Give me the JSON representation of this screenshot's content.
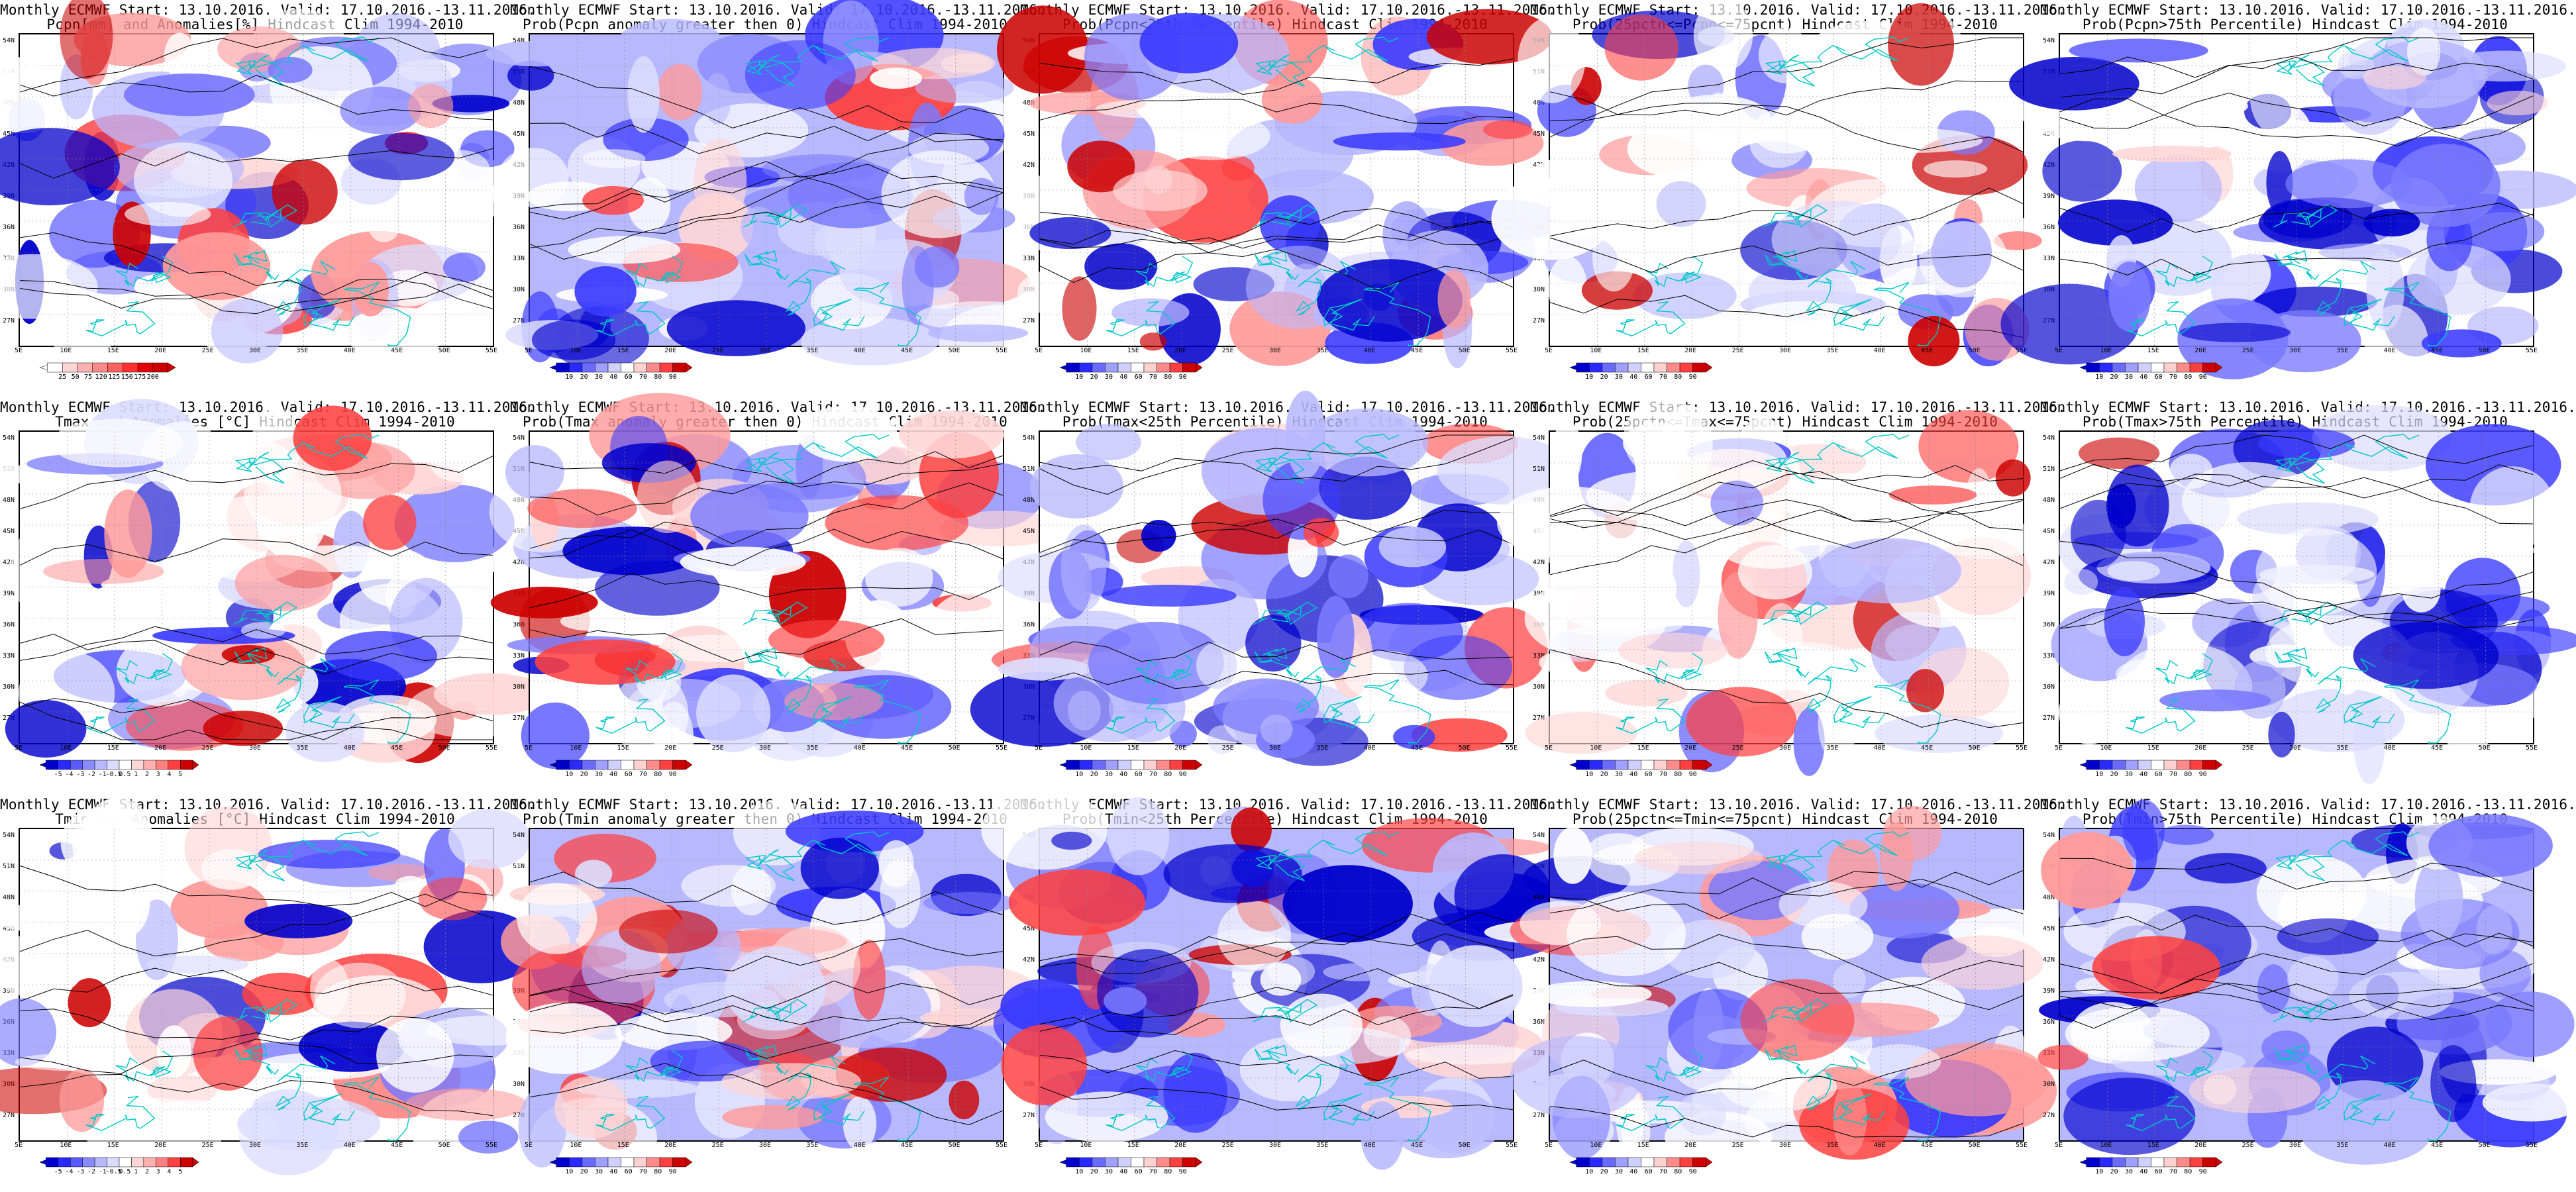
{
  "figure": {
    "panels": [
      {
        "title1": "Monthly ECMWF Start: 13.10.2016. Valid: 17.10.2016.-13.11.2016.",
        "title2": "Pcpn[mm] and Anomalies[%] Hindcast Clim 1994-2010",
        "cbar": "anom_pcpn",
        "ticks": [
          "25",
          "50",
          "75",
          "120",
          "125",
          "150",
          "175",
          "200"
        ]
      },
      {
        "title1": "Monthly ECMWF Start: 13.10.2016. Valid: 17.10.2016.-13.11.2016.",
        "title2": "Prob(Pcpn anomaly greater then 0) Hindcast Clim 1994-2010",
        "cbar": "prob",
        "ticks": [
          "10",
          "20",
          "30",
          "40",
          "60",
          "70",
          "80",
          "90"
        ]
      },
      {
        "title1": "Monthly ECMWF Start: 13.10.2016. Valid: 17.10.2016.-13.11.2016.",
        "title2": "Prob(Pcpn<25th Percentile) Hindcast Clim 1994-2010",
        "cbar": "prob",
        "ticks": [
          "10",
          "20",
          "30",
          "40",
          "60",
          "70",
          "80",
          "90"
        ]
      },
      {
        "title1": "Monthly ECMWF Start: 13.10.2016. Valid: 17.10.2016.-13.11.2016.",
        "title2": "Prob(25pctn<=Pcpn<=75pcnt) Hindcast Clim 1994-2010",
        "cbar": "prob",
        "ticks": [
          "10",
          "20",
          "30",
          "40",
          "60",
          "70",
          "80",
          "90"
        ]
      },
      {
        "title1": "Monthly ECMWF Start: 13.10.2016. Valid: 17.10.2016.-13.11.2016.",
        "title2": "Prob(Pcpn>75th Percentile) Hindcast Clim 1994-2010",
        "cbar": "prob",
        "ticks": [
          "10",
          "20",
          "30",
          "40",
          "60",
          "70",
          "80",
          "90"
        ]
      },
      {
        "title1": "Monthly ECMWF Start: 13.10.2016. Valid: 17.10.2016.-13.11.2016.",
        "title2": "Tmax and Anomalies [°C] Hindcast Clim 1994-2010",
        "cbar": "anom_temp",
        "ticks": [
          "-5",
          "-4",
          "-3",
          "-2",
          "-1",
          "-0.5",
          "0.5",
          "1",
          "2",
          "3",
          "4",
          "5"
        ]
      },
      {
        "title1": "Monthly ECMWF Start: 13.10.2016. Valid: 17.10.2016.-13.11.2016.",
        "title2": "Prob(Tmax anomaly greater then 0) Hindcast Clim 1994-2010",
        "cbar": "prob",
        "ticks": [
          "10",
          "20",
          "30",
          "40",
          "60",
          "70",
          "80",
          "90"
        ]
      },
      {
        "title1": "Monthly ECMWF Start: 13.10.2016. Valid: 17.10.2016.-13.11.2016.",
        "title2": "Prob(Tmax<25th Percentile) Hindcast Clim 1994-2010",
        "cbar": "prob",
        "ticks": [
          "10",
          "20",
          "30",
          "40",
          "60",
          "70",
          "80",
          "90"
        ]
      },
      {
        "title1": "Monthly ECMWF Start: 13.10.2016. Valid: 17.10.2016.-13.11.2016.",
        "title2": "Prob(25pctn<=Tmax<=75pcnt) Hindcast Clim 1994-2010",
        "cbar": "prob",
        "ticks": [
          "10",
          "20",
          "30",
          "40",
          "60",
          "70",
          "80",
          "90"
        ]
      },
      {
        "title1": "Monthly ECMWF Start: 13.10.2016. Valid: 17.10.2016.-13.11.2016.",
        "title2": "Prob(Tmax>75th Percentile) Hindcast Clim 1994-2010",
        "cbar": "prob",
        "ticks": [
          "10",
          "20",
          "30",
          "40",
          "60",
          "70",
          "80",
          "90"
        ]
      },
      {
        "title1": "Monthly ECMWF Start: 13.10.2016. Valid: 17.10.2016.-13.11.2016.",
        "title2": "Tmin and Anomalies [°C] Hindcast Clim 1994-2010",
        "cbar": "anom_temp",
        "ticks": [
          "-5",
          "-4",
          "-3",
          "-2",
          "-1",
          "-0.5",
          "0.5",
          "1",
          "2",
          "3",
          "4",
          "5"
        ]
      },
      {
        "title1": "Monthly ECMWF Start: 13.10.2016. Valid: 17.10.2016.-13.11.2016.",
        "title2": "Prob(Tmin anomaly greater then 0) Hindcast Clim 1994-2010",
        "cbar": "prob",
        "ticks": [
          "10",
          "20",
          "30",
          "40",
          "60",
          "70",
          "80",
          "90"
        ]
      },
      {
        "title1": "Monthly ECMWF Start: 13.10.2016. Valid: 17.10.2016.-13.11.2016.",
        "title2": "Prob(Tmin<25th Percentile) Hindcast Clim 1994-2010",
        "cbar": "prob",
        "ticks": [
          "10",
          "20",
          "30",
          "40",
          "60",
          "70",
          "80",
          "90"
        ]
      },
      {
        "title1": "Monthly ECMWF Start: 13.10.2016. Valid: 17.10.2016.-13.11.2016.",
        "title2": "Prob(25pctn<=Tmin<=75pcnt) Hindcast Clim 1994-2010",
        "cbar": "prob",
        "ticks": [
          "10",
          "20",
          "30",
          "40",
          "60",
          "70",
          "80",
          "90"
        ]
      },
      {
        "title1": "Monthly ECMWF Start: 13.10.2016. Valid: 17.10.2016.-13.11.2016.",
        "title2": "Prob(Tmin>75th Percentile) Hindcast Clim 1994-2010",
        "cbar": "prob",
        "ticks": [
          "10",
          "20",
          "30",
          "40",
          "60",
          "70",
          "80",
          "90"
        ]
      }
    ],
    "lat_labels": [
      "54N",
      "51N",
      "48N",
      "45N",
      "42N",
      "39N",
      "36N",
      "33N",
      "30N",
      "27N"
    ],
    "lon_labels": [
      "5E",
      "10E",
      "15E",
      "20E",
      "25E",
      "30E",
      "35E",
      "40E",
      "45E",
      "50E",
      "55E"
    ],
    "colors": {
      "deep_blue": "#0000cc",
      "blue": "#3a3aff",
      "mid_blue": "#7a7aff",
      "light_blue": "#b8b8ff",
      "pale_blue": "#dcdcff",
      "pale_red": "#ffd6d6",
      "light_red": "#ff9a9a",
      "red": "#ff4040",
      "deep_red": "#cc0000",
      "coast": "#00c8c8",
      "contour": "#000000"
    }
  }
}
